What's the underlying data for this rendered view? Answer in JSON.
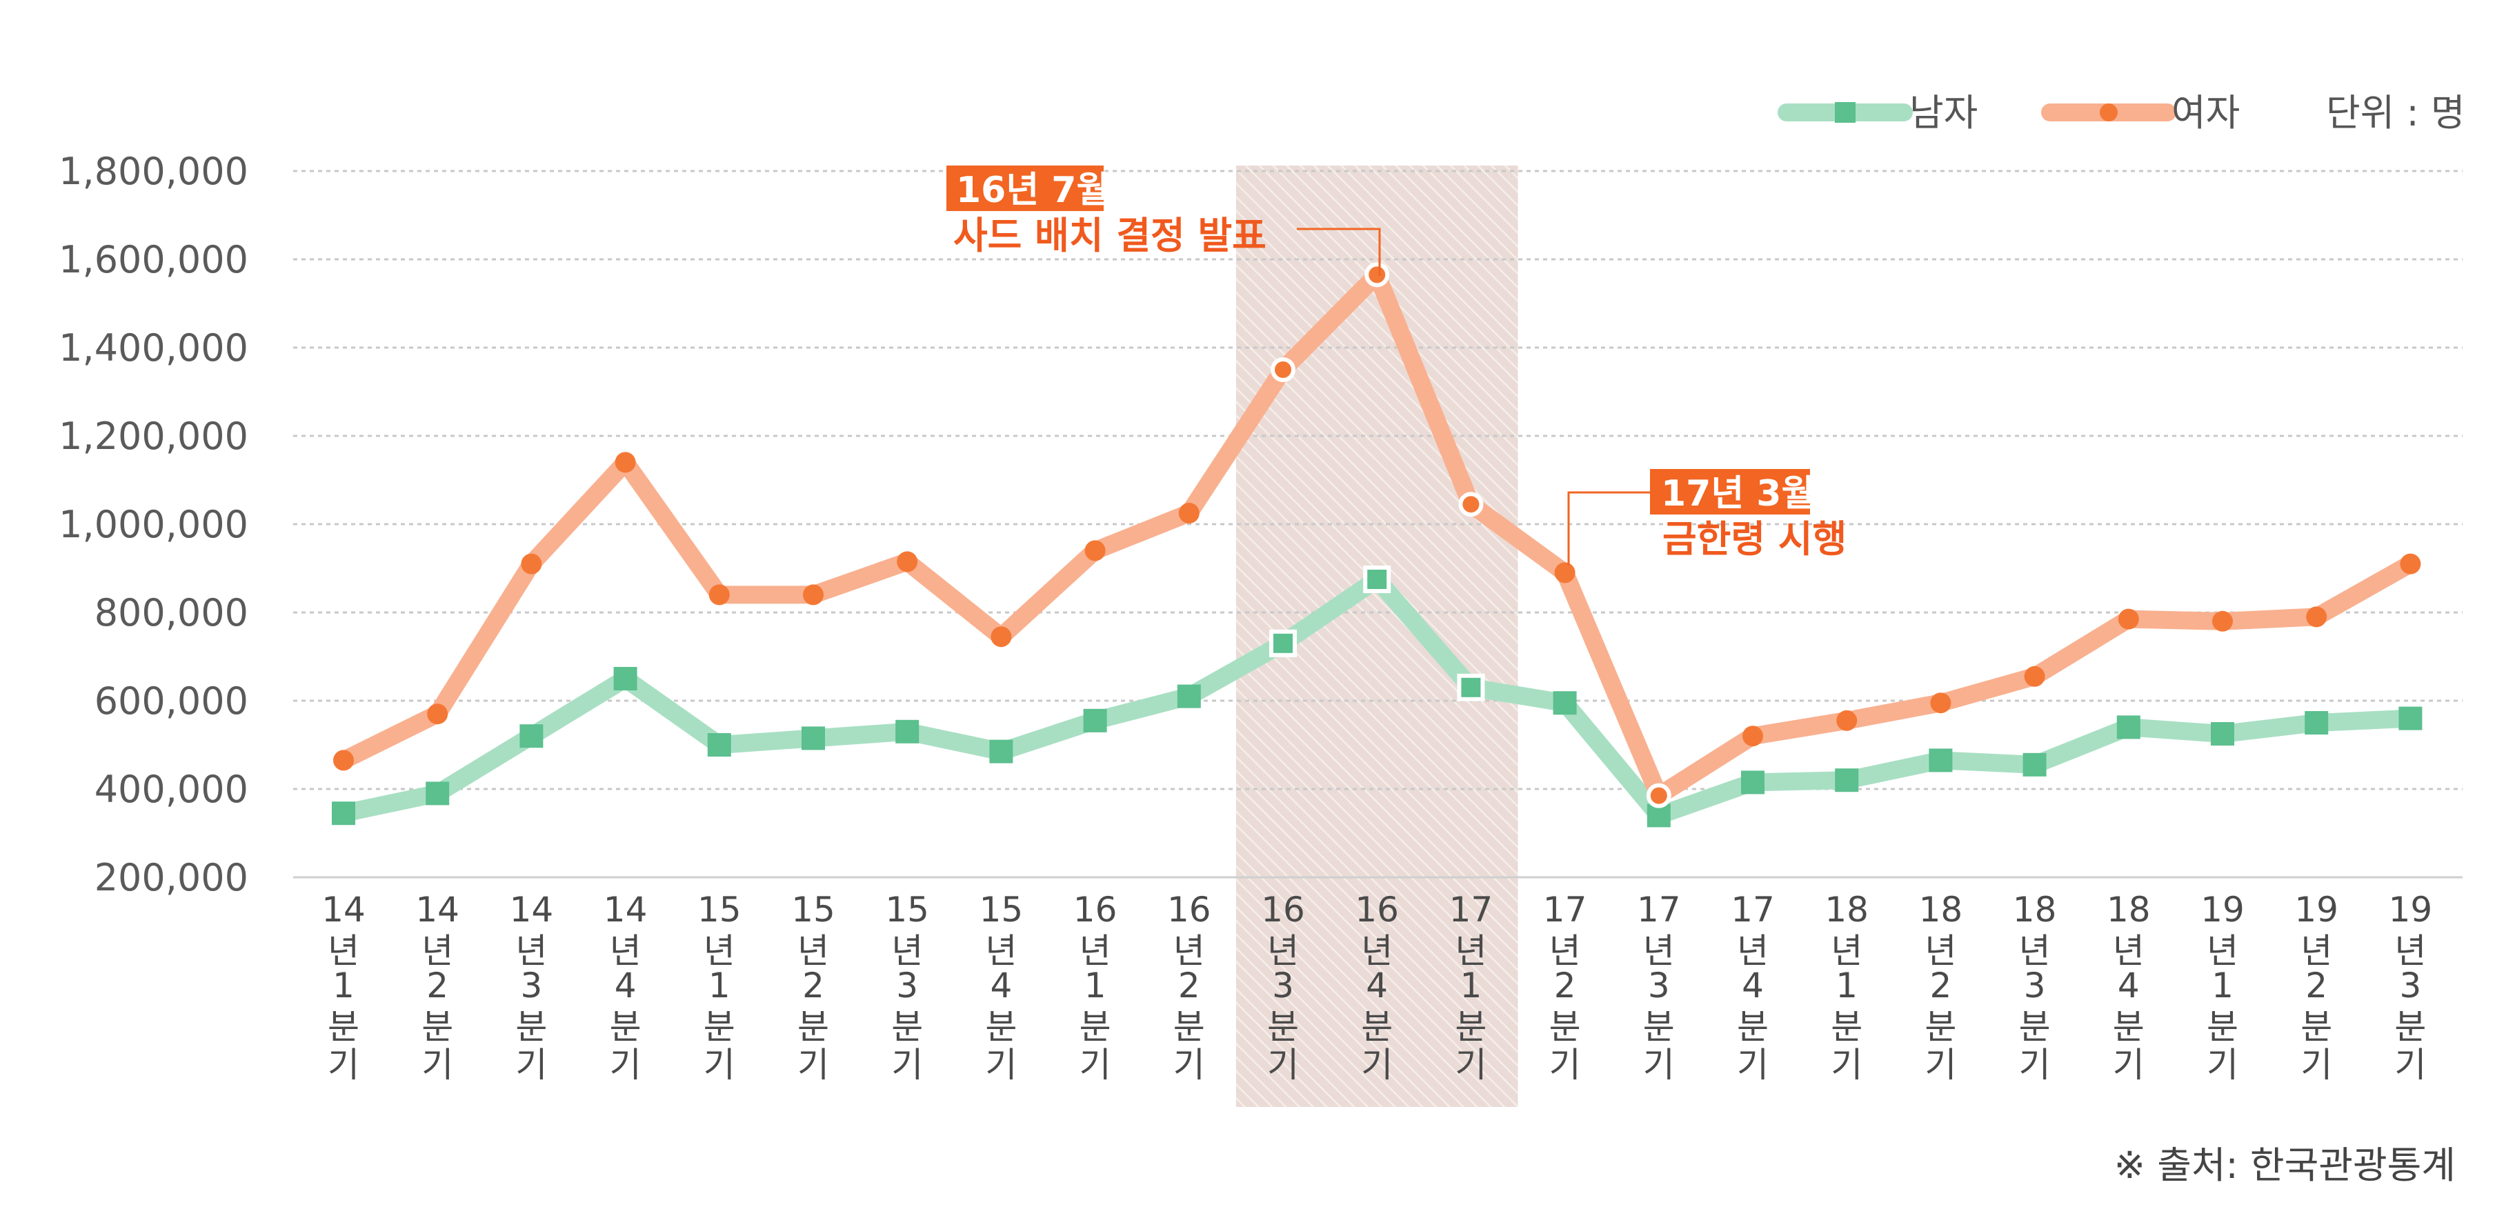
{
  "chart_data": {
    "type": "line",
    "categories": [
      [
        "14",
        "년",
        "1",
        "분",
        "기"
      ],
      [
        "14",
        "년",
        "2",
        "분",
        "기"
      ],
      [
        "14",
        "년",
        "3",
        "분",
        "기"
      ],
      [
        "14",
        "년",
        "4",
        "분",
        "기"
      ],
      [
        "15",
        "년",
        "1",
        "분",
        "기"
      ],
      [
        "15",
        "년",
        "2",
        "분",
        "기"
      ],
      [
        "15",
        "년",
        "3",
        "분",
        "기"
      ],
      [
        "15",
        "년",
        "4",
        "분",
        "기"
      ],
      [
        "16",
        "년",
        "1",
        "분",
        "기"
      ],
      [
        "16",
        "년",
        "2",
        "분",
        "기"
      ],
      [
        "16",
        "년",
        "3",
        "분",
        "기"
      ],
      [
        "16",
        "년",
        "4",
        "분",
        "기"
      ],
      [
        "17",
        "년",
        "1",
        "분",
        "기"
      ],
      [
        "17",
        "년",
        "2",
        "분",
        "기"
      ],
      [
        "17",
        "년",
        "3",
        "분",
        "기"
      ],
      [
        "17",
        "년",
        "4",
        "분",
        "기"
      ],
      [
        "18",
        "년",
        "1",
        "분",
        "기"
      ],
      [
        "18",
        "년",
        "2",
        "분",
        "기"
      ],
      [
        "18",
        "년",
        "3",
        "분",
        "기"
      ],
      [
        "18",
        "년",
        "4",
        "분",
        "기"
      ],
      [
        "19",
        "년",
        "1",
        "분",
        "기"
      ],
      [
        "19",
        "년",
        "2",
        "분",
        "기"
      ],
      [
        "19",
        "년",
        "3",
        "분",
        "기"
      ]
    ],
    "series": [
      {
        "name": "남자",
        "color": "#a8dfc3",
        "marker_color": "#5bbf8e",
        "marker": "square",
        "values": [
          345000,
          390000,
          520000,
          650000,
          500000,
          515000,
          530000,
          485000,
          555000,
          610000,
          730000,
          875000,
          630000,
          595000,
          340000,
          415000,
          420000,
          465000,
          455000,
          540000,
          525000,
          550000,
          560000
        ]
      },
      {
        "name": "여자",
        "color": "#f9b08f",
        "marker_color": "#f47835",
        "marker": "circle",
        "values": [
          465000,
          570000,
          910000,
          1140000,
          840000,
          840000,
          915000,
          745000,
          940000,
          1025000,
          1350000,
          1565000,
          1045000,
          890000,
          385000,
          520000,
          555000,
          595000,
          655000,
          785000,
          780000,
          790000,
          910000
        ]
      }
    ],
    "ylim": [
      200000,
      1800000
    ],
    "yticks": [
      "200,000",
      "400,000",
      "600,000",
      "800,000",
      "1,000,000",
      "1,200,000",
      "1,400,000",
      "1,600,000",
      "1,800,000"
    ],
    "ytick_values": [
      200000,
      400000,
      600000,
      800000,
      1000000,
      1200000,
      1400000,
      1600000,
      1800000
    ],
    "grid": true,
    "unit_label": "단위 : 명",
    "legend_position": "top-right",
    "highlight_range": [
      "16년 3분기",
      "17년 1분기"
    ],
    "highlight_color": "#e9d8d3",
    "annotations": [
      {
        "box": "16년 7월",
        "text": "사드 배치 결정 발표",
        "category_index": 11,
        "series": "여자"
      },
      {
        "box": "17년 3월",
        "text": "금한령 시행",
        "category_index": 13,
        "series": "여자"
      }
    ],
    "source": "※ 출처: 한국관광통계"
  }
}
